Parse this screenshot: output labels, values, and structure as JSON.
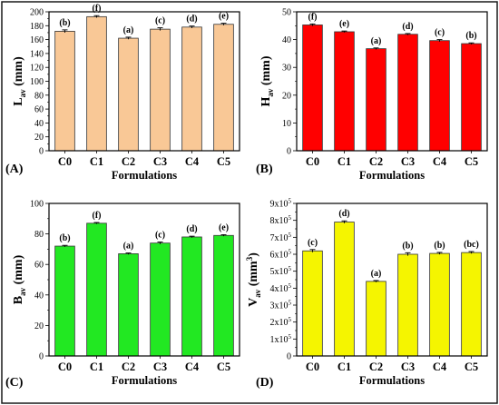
{
  "colors": {
    "border": "#1a1a1a",
    "A": "#f9c896",
    "B": "#ff0000",
    "C": "#22e822",
    "D": "#f5f500"
  },
  "chart_data": [
    {
      "panel": "(A)",
      "type": "bar",
      "categories": [
        "C0",
        "C1",
        "C2",
        "C3",
        "C4",
        "C5"
      ],
      "values": [
        172,
        193,
        162,
        175,
        178,
        182
      ],
      "errors": [
        2,
        1.5,
        1.5,
        2,
        1.5,
        1.5
      ],
      "value_labels": [
        "(b)",
        "(f)",
        "(a)",
        "(c)",
        "(d)",
        "(e)"
      ],
      "xlabel": "Formulations",
      "ylabel": {
        "main": "L",
        "sub": "av",
        "unit": " (mm)"
      },
      "ylim": [
        0,
        200
      ],
      "yticks": [
        "0",
        "20",
        "40",
        "60",
        "80",
        "100",
        "120",
        "140",
        "160",
        "180",
        "200"
      ],
      "fill": "#f9c896"
    },
    {
      "panel": "(B)",
      "type": "bar",
      "categories": [
        "C0",
        "C1",
        "C2",
        "C3",
        "C4",
        "C5"
      ],
      "values": [
        49.8,
        47.1,
        40.4,
        46.1,
        43.6,
        42.4
      ],
      "errors": [
        0.4,
        0.3,
        0.3,
        0.3,
        0.4,
        0.3
      ],
      "value_labels": [
        "(f)",
        "(e)",
        "(a)",
        "(d)",
        "(c)",
        "(b)"
      ],
      "xlabel": "Formulations",
      "ylabel": {
        "main": "H",
        "sub": "av",
        "unit": " (mm)"
      },
      "ylim": [
        0,
        55
      ],
      "yticks": [
        "0",
        "10",
        "20",
        "30",
        "40",
        "50"
      ],
      "fill": "#ff0000"
    },
    {
      "panel": "(C)",
      "type": "bar",
      "categories": [
        "C0",
        "C1",
        "C2",
        "C3",
        "C4",
        "C5"
      ],
      "values": [
        72,
        87,
        67,
        74,
        78,
        79
      ],
      "errors": [
        0.5,
        0.5,
        0.5,
        0.7,
        0.5,
        0.5
      ],
      "value_labels": [
        "(b)",
        "(f)",
        "(a)",
        "(c)",
        "(d)",
        "(e)"
      ],
      "xlabel": "Formulations",
      "ylabel": {
        "main": "B",
        "sub": "av",
        "unit": " (mm)"
      },
      "ylim": [
        0,
        100
      ],
      "yticks": [
        "0",
        "20",
        "40",
        "60",
        "80",
        "100"
      ],
      "fill": "#22e822"
    },
    {
      "panel": "(D)",
      "type": "bar",
      "categories": [
        "C0",
        "C1",
        "C2",
        "C3",
        "C4",
        "C5"
      ],
      "values": [
        620000,
        790000,
        440000,
        600000,
        605000,
        610000
      ],
      "errors": [
        8000,
        7000,
        5000,
        9000,
        6000,
        6000
      ],
      "value_labels": [
        "(c)",
        "(d)",
        "(a)",
        "(b)",
        "(b)",
        "(bc)"
      ],
      "xlabel": "Formulations",
      "ylabel": {
        "main": "V",
        "sub": "av",
        "unit": " (mm",
        "sup": "3",
        "close": ")"
      },
      "ylim": [
        0,
        900000
      ],
      "yticks": [
        "0",
        "1x10",
        "2x10",
        "3x10",
        "4x10",
        "5x10",
        "6x10",
        "7x10",
        "8x10",
        "9x10"
      ],
      "ytick_exponent": "5",
      "fill": "#f5f500"
    }
  ]
}
